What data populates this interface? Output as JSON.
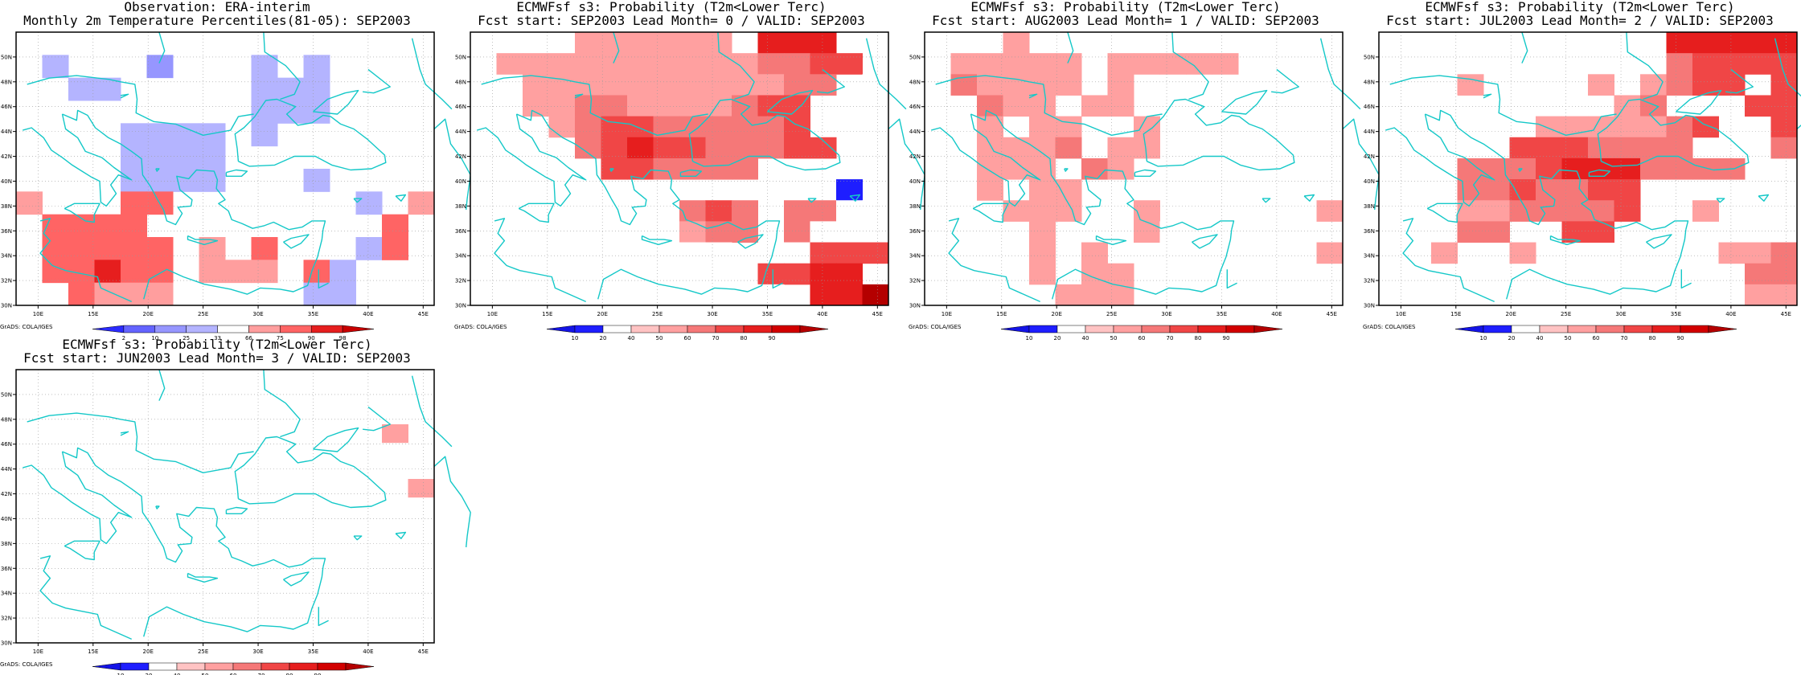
{
  "panels": [
    {
      "title_line1": "Observation: ERA-interim",
      "title_line2": "Monthly 2m Temperature Percentiles(81-05): SEP2003",
      "colorbar_labels": [
        "2",
        "10",
        "25",
        "33",
        "66",
        "75",
        "90",
        "98"
      ],
      "grid": [
        "...............4",
        ".3...2...3.3....",
        "..33.....333.4..",
        ".........333....",
        "....3333.3......",
        "....3333........",
        "....3333...3....",
        "5...66.......3.5",
        ".6666.........6.",
        ".66666.5.6...36.",
        ".66766.555.63...",
        "..6555.....33..."
      ]
    },
    {
      "title_line1": "ECMWFsf s3: Probability (T2m<Lower Terc)",
      "title_line2": "Fcst start: SEP2003  Lead Month= 0 / VALID: SEP2003",
      "colorbar_labels": [
        "10",
        "20",
        "40",
        "50",
        "60",
        "70",
        "80",
        "90"
      ],
      "grid": [
        "....444444.777..",
        ".44444444445566.",
        "..444444444455.2",
        "..44554444566..2",
        "...4566555556..2",
        "2...5676655566..",
        "2.2..665555.....",
        ".2..........221.",
        "222222..565.5522",
        "22.2....455.52..",
        "2222..2222.22666",
        "22222..22226677.",
        "222.222.2222.779"
      ]
    },
    {
      "title_line1": "ECMWFsf s3: Probability (T2m<Lower Terc)",
      "title_line2": "Fcst start: AUG2003  Lead Month= 1 / VALID: SEP2003",
      "colorbar_labels": [
        "10",
        "20",
        "40",
        "50",
        "60",
        "70",
        "80",
        "90"
      ],
      "grid": [
        "...4............",
        ".44444.44444....",
        ".54444.4........",
        "..544.44....22..",
        "..4.44..4.......",
        "..4445.44.222...",
        "..444.54..2.....",
        "..4.44...2222...",
        "...444..4..22..4",
        ".22.4...42222...",
        ".22.4.4..222...4",
        "..2.4.44..222...",
        ".....444..2.22.."
      ]
    },
    {
      "title_line1": "ECMWFsf s3: Probability (T2m<Lower Terc)",
      "title_line2": "Fcst start: JUL2003  Lead Month= 2 / VALID: SEP2003",
      "colorbar_labels": [
        "10",
        "20",
        "40",
        "50",
        "60",
        "70",
        "80",
        "90"
      ],
      "grid": [
        "2222.......77777",
        "...........56666",
        "...4....4.4566.6",
        "..2......45...66",
        "..2...4444456..6",
        ".....6665555...5",
        "...55567775555..",
        "2..5565566......",
        "2..4455556..4...",
        "2..55..66.......",
        "..4..4.......445",
        "...........2..55",
        "..............44"
      ]
    },
    {
      "title_line1": "ECMWFsf s3: Probability (T2m<Lower Terc)",
      "title_line2": "Fcst start: JUN2003  Lead Month= 3 / VALID: SEP2003",
      "colorbar_labels": [
        "10",
        "20",
        "40",
        "50",
        "60",
        "70",
        "80",
        "90"
      ],
      "grid": [
        "2222222222222...",
        "2222222222222..2",
        "22222222222.....",
        "22222222222...4.",
        "222222222222....",
        "2222222.22......",
        "222222.2.......4",
        ".2222222.....2..",
        "...222222.......",
        ".22222222.......",
        ".2222.22.2222222",
        ".22.2..22222..22",
        ".2222222222.2222",
        "2..2222.2222.222",
        "2..22.222.222..2"
      ]
    }
  ],
  "map_axes": {
    "lon_labels": [
      "10E",
      "15E",
      "20E",
      "25E",
      "30E",
      "35E",
      "40E",
      "45E"
    ],
    "lat_labels": [
      "50N",
      "48N",
      "46N",
      "44N",
      "42N",
      "40N",
      "38N",
      "36N",
      "34N",
      "32N",
      "30N"
    ]
  },
  "palettes": {
    "observation": [
      "#2b2bff",
      "#6464ff",
      "#9696ff",
      "#b4b4ff",
      "#ffffff",
      "#ff9e9e",
      "#ff6464",
      "#e61e1e",
      "#c80000"
    ],
    "forecast": [
      "#1414e6",
      "#1e1eff",
      "#ffffff",
      "#ffc3c3",
      "#ffa0a0",
      "#f57878",
      "#f04646",
      "#e61e1e",
      "#d20000",
      "#b40000"
    ]
  },
  "credit": "GrADS: COLA/IGES"
}
